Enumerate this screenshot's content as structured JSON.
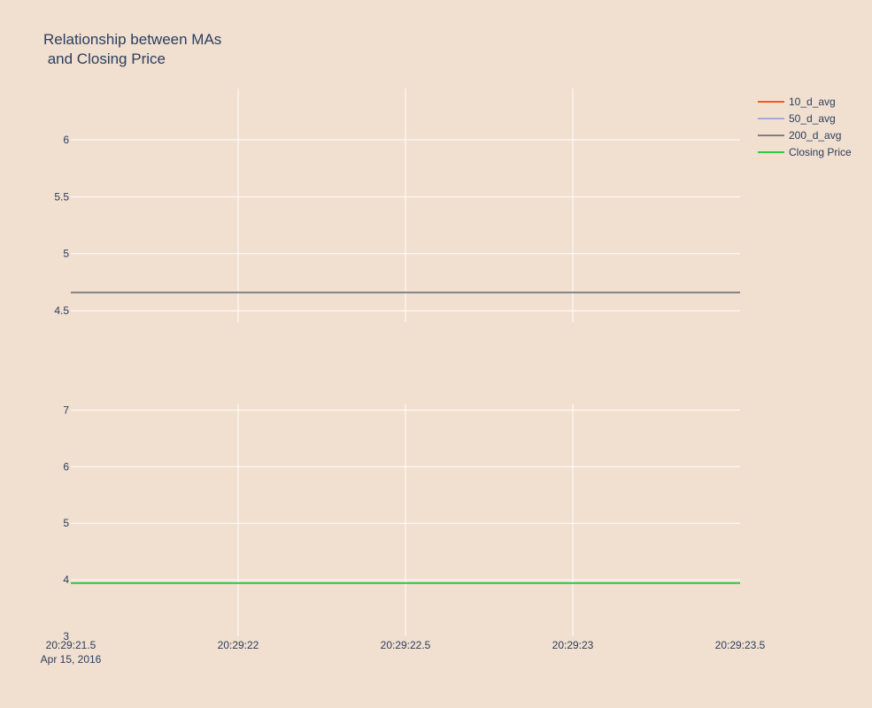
{
  "chart_data": {
    "type": "line",
    "title_lines": [
      "Relationship between MAs",
      " and Closing Price"
    ],
    "x_ticks": [
      "20:29:21.5",
      "20:29:22",
      "20:29:22.5",
      "20:29:23",
      "20:29:23.5"
    ],
    "x_date_label": "Apr 15, 2016",
    "x_range": [
      "2016-04-15 20:29:21.5",
      "2016-04-15 20:29:23.5"
    ],
    "grid": true,
    "legend_position": "top-right",
    "subplots": [
      {
        "ylim": [
          4.4,
          6.45
        ],
        "y_ticks": [
          4.5,
          5,
          5.5,
          6
        ],
        "series": [
          {
            "name": "10_d_avg",
            "color": "#ff5a14",
            "y": 4.66
          },
          {
            "name": "50_d_avg",
            "color": "#a3a9d9",
            "y": 4.66
          },
          {
            "name": "200_d_avg",
            "color": "#7f7f7f",
            "y": 4.66
          }
        ]
      },
      {
        "ylim": [
          3,
          7.1
        ],
        "y_ticks": [
          3,
          4,
          5,
          6,
          7
        ],
        "series": [
          {
            "name": "Closing Price",
            "color": "#2ecc40",
            "y": 3.94
          }
        ]
      }
    ]
  },
  "colors": {
    "background": "#f1dfcf",
    "grid": "#ffffff",
    "text": "#2a3f5f"
  }
}
